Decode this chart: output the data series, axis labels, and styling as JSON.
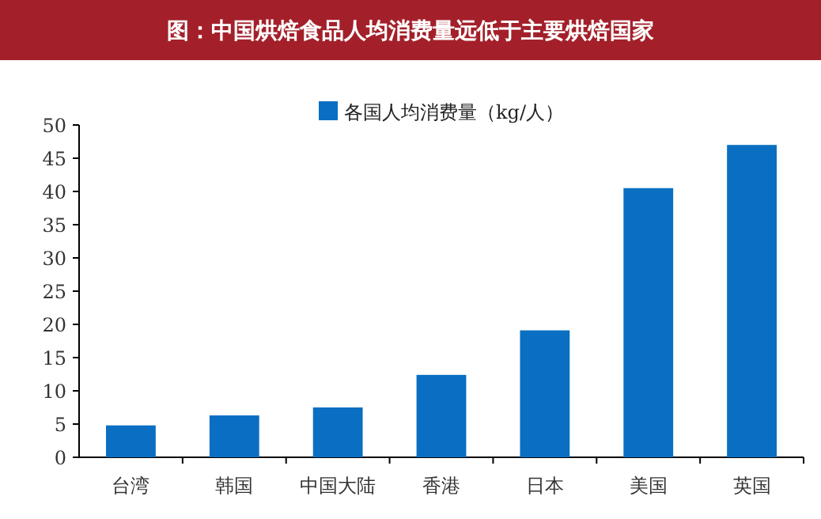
{
  "chart_data": {
    "type": "bar",
    "title": "图：中国烘焙食品人均消费量远低于主要烘焙国家",
    "categories": [
      "台湾",
      "韩国",
      "中国大陆",
      "香港",
      "日本",
      "美国",
      "英国"
    ],
    "series": [
      {
        "name": "各国人均消费量（kg/人）",
        "color": "#0a6fc2",
        "values": [
          4.8,
          6.3,
          7.5,
          12.4,
          19.1,
          40.5,
          47.0
        ]
      }
    ],
    "ylim": [
      0,
      50
    ],
    "yticks": [
      0,
      5,
      10,
      15,
      20,
      25,
      30,
      35,
      40,
      45,
      50
    ],
    "legend": "top"
  }
}
